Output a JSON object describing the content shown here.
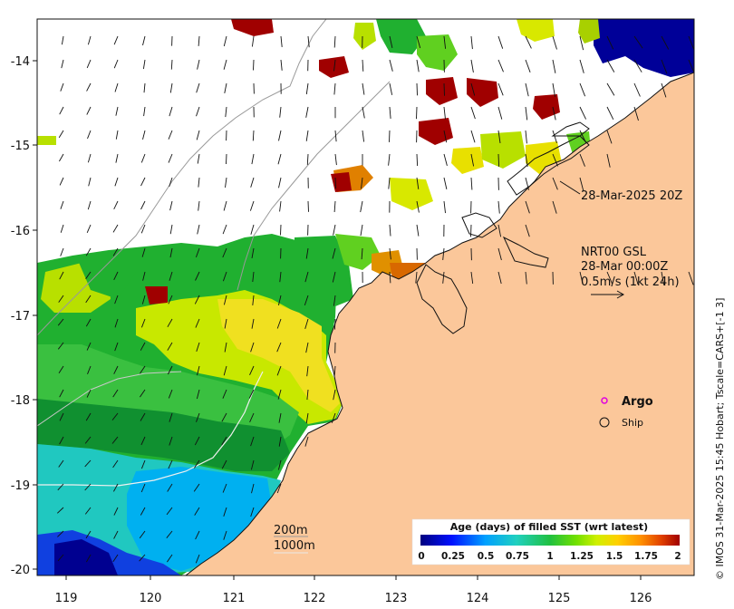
{
  "map": {
    "lon_ticks": [
      "119",
      "120",
      "121",
      "122",
      "123",
      "124",
      "125",
      "126"
    ],
    "lat_ticks": [
      "-14",
      "-15",
      "-16",
      "-17",
      "-18",
      "-19",
      "-20"
    ],
    "timestamp_label": "28-Mar-2025 20Z",
    "product_label": "NRT00 GSL",
    "date_label": "28-Mar 00:00Z",
    "scale_label": "0.5m/s (1kt 24h)",
    "contour_200": "200m",
    "contour_1000": "1000m",
    "argo_label": "Argo",
    "ship_label": "Ship",
    "credit": "© IMOS 31-Mar-2025 15:45 Hobart; Tscale=CARS+[-1 3]"
  },
  "legend": {
    "title": "Age (days) of filled SST (wrt latest)",
    "ticks": [
      "0",
      "0.25",
      "0.5",
      "0.75",
      "1",
      "1.25",
      "1.5",
      "1.75",
      "2"
    ],
    "colors": [
      "#00007f",
      "#0010ff",
      "#00a0ff",
      "#20d0c0",
      "#20c040",
      "#70e000",
      "#d0f000",
      "#ffd000",
      "#ff9000",
      "#e04000",
      "#a00000"
    ]
  },
  "colors": {
    "land": "#fbc79a",
    "coast": "#111111",
    "arrows": "#111111",
    "argo": "#e000e0"
  }
}
